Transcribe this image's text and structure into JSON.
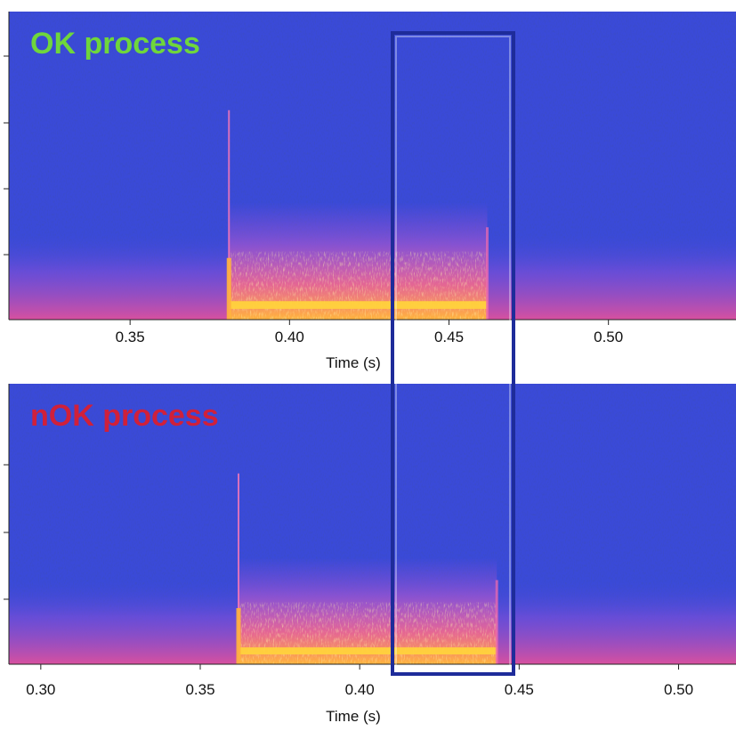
{
  "chart_data": [
    {
      "type": "heatmap",
      "panel_title": "OK process",
      "panel_title_color": "#6fd63c",
      "xlabel": "Time (s)",
      "xlim": [
        0.312,
        0.54
      ],
      "x_ticks": [
        "0.35",
        "0.40",
        "0.45",
        "0.50"
      ],
      "x_tick_values": [
        0.35,
        0.4,
        0.45,
        0.5
      ],
      "event_onset_time": 0.381,
      "event_end_time": 0.462,
      "colormap": [
        "#3a4ad8",
        "#c64fd8",
        "#f0589c",
        "#ffb43c",
        "#ffe048"
      ]
    },
    {
      "type": "heatmap",
      "panel_title": "nOK process",
      "panel_title_color": "#d0203a",
      "xlabel": "Time (s)",
      "xlim": [
        0.29,
        0.518
      ],
      "x_ticks": [
        "0.30",
        "0.35",
        "0.40",
        "0.45",
        "0.50"
      ],
      "x_tick_values": [
        0.3,
        0.35,
        0.4,
        0.45,
        0.5
      ],
      "event_onset_time": 0.362,
      "event_end_time": 0.443,
      "colormap": [
        "#3a4ad8",
        "#c64fd8",
        "#f0589c",
        "#ffb43c",
        "#ffe048"
      ]
    }
  ],
  "highlight": {
    "color": "#1e2c9a"
  }
}
